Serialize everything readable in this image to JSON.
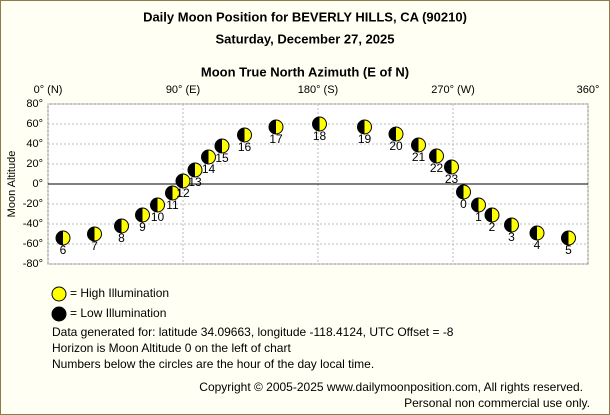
{
  "chart_data": {
    "type": "scatter",
    "title": "Daily Moon Position for BEVERLY HILLS, CA (90210)",
    "subtitle": "Saturday, December 27, 2025",
    "x_label": "Moon True North Azimuth (E of N)",
    "y_label": "Moon Altitude",
    "xlim": [
      0,
      360
    ],
    "ylim": [
      -80,
      80
    ],
    "xticks": [
      {
        "value": 0,
        "label": "0° (N)"
      },
      {
        "value": 90,
        "label": "90° (E)"
      },
      {
        "value": 180,
        "label": "180° (S)"
      },
      {
        "value": 270,
        "label": "270° (W)"
      },
      {
        "value": 360,
        "label": "360°"
      }
    ],
    "yticks": [
      {
        "value": 80,
        "label": "80°"
      },
      {
        "value": 60,
        "label": "60°"
      },
      {
        "value": 40,
        "label": "40°"
      },
      {
        "value": 20,
        "label": "20°"
      },
      {
        "value": 0,
        "label": "0°"
      },
      {
        "value": -20,
        "label": "-20°"
      },
      {
        "value": -40,
        "label": "-40°"
      },
      {
        "value": -60,
        "label": "-60°"
      },
      {
        "value": -80,
        "label": "-80°"
      }
    ],
    "grid": true,
    "x": [
      10,
      31,
      49,
      63,
      73,
      83,
      90,
      98,
      107,
      116,
      131,
      152,
      181,
      211,
      232,
      247,
      259,
      269,
      277,
      287,
      296,
      309,
      326,
      347
    ],
    "y": [
      -54,
      -50,
      -42,
      -31,
      -21,
      -9,
      3,
      14,
      27,
      38,
      49,
      57,
      60,
      57,
      50,
      39,
      28,
      17,
      -8,
      -21,
      -31,
      -41,
      -49,
      -54
    ],
    "labels": [
      "6",
      "7",
      "8",
      "9",
      "10",
      "11",
      "12",
      "13",
      "14",
      "15",
      "16",
      "17",
      "18",
      "19",
      "20",
      "21",
      "22",
      "23",
      "0",
      "1",
      "2",
      "3",
      "4",
      "5"
    ],
    "lit_color": "#ffff00",
    "dark_color": "#000000",
    "legend": [
      "= High Illumination",
      "= Low Illumination"
    ],
    "notes": [
      "Data generated for: latitude 34.09663, longitude -118.4124, UTC Offset = -8",
      "Horizon is Moon Altitude 0 on the left of chart",
      "Numbers below the circles are the hour of the day local time."
    ],
    "copyright": [
      "Copyright © 2005-2025 www.dailymoonposition.com, All rights reserved.",
      "Personal non commercial use only."
    ]
  }
}
